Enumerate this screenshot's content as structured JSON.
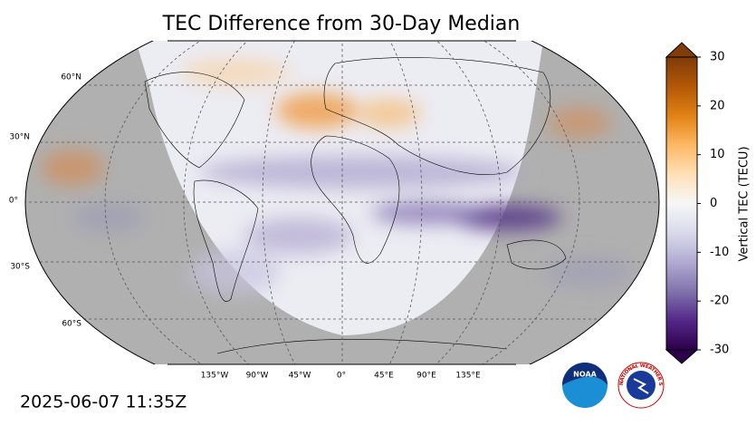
{
  "title": "TEC Difference from 30-Day Median",
  "timestamp": "2025-06-07 11:35Z",
  "lat_labels": [
    "60°N",
    "30°N",
    "0°",
    "30°S",
    "60°S"
  ],
  "lon_labels": [
    "135°W",
    "90°W",
    "45°W",
    "0°",
    "45°E",
    "90°E",
    "135°E"
  ],
  "colorbar": {
    "label": "Vertical TEC (TECU)",
    "lim": [
      -30,
      30
    ],
    "ticks": [
      -30,
      -20,
      -10,
      0,
      10,
      20,
      30
    ],
    "colors": [
      "#2d004b",
      "#542788",
      "#8073ac",
      "#b2abd2",
      "#d8daeb",
      "#f7f7f7",
      "#fee0b6",
      "#fdb863",
      "#e08214",
      "#b35806",
      "#7f3b08"
    ]
  },
  "logos": {
    "noaa": "NOAA",
    "nws": "NATIONAL WEATHER SERVICE"
  }
}
